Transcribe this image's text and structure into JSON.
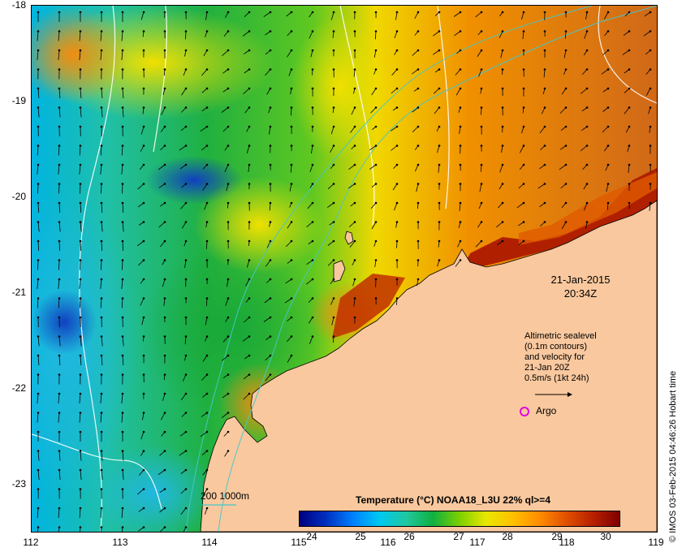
{
  "map": {
    "lon_range": [
      112,
      119
    ],
    "lat_range": [
      -23.5,
      -18
    ],
    "colors": {
      "land": "#f9c89e",
      "contour": "#ffffff",
      "isobath": "#46c8c8",
      "arrow": "#000000",
      "argo": "#e000e0"
    }
  },
  "axes": {
    "x_ticks": [
      "112",
      "113",
      "114",
      "115",
      "116",
      "117",
      "118",
      "119"
    ],
    "y_ticks": [
      "-18",
      "-19",
      "-20",
      "-21",
      "-22",
      "-23"
    ]
  },
  "timestamp": {
    "date": "21-Jan-2015",
    "time": "20:34Z"
  },
  "legend": {
    "lines": [
      "Altimetric sealevel",
      "(0.1m contours)",
      "and velocity for",
      "21-Jan 20Z",
      "0.5m/s (1kt 24h)"
    ],
    "argo_label": "Argo",
    "isobath_label": "200  1000m"
  },
  "colorbar": {
    "title": "Temperature (°C) NOAA18_L3U 22% ql>=4",
    "ticks": [
      "24",
      "25",
      "26",
      "27",
      "28",
      "29",
      "30"
    ],
    "colors": [
      "#00007f",
      "#0030c0",
      "#0080ff",
      "#00c8f0",
      "#20c8a0",
      "#10b040",
      "#7cd000",
      "#e8e800",
      "#ffc000",
      "#ff8c00",
      "#e05000",
      "#b82000",
      "#7f0000"
    ]
  },
  "credit": "© IMOS 03-Feb-2015 04:46:26 Hobart time"
}
